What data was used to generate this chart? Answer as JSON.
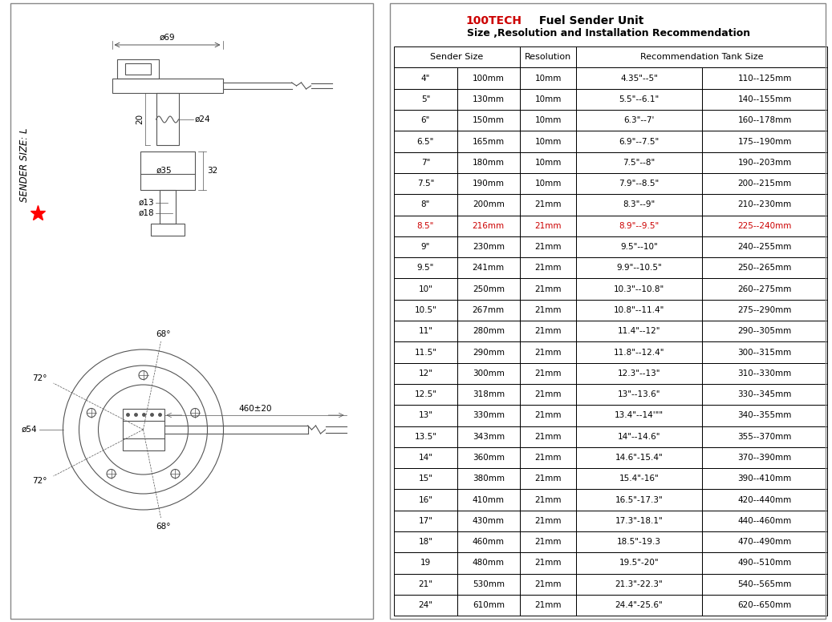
{
  "title_red": "100TECH",
  "title_black": " Fuel Sender Unit",
  "subtitle": "Size ,Resolution and Installation Recommendation",
  "title_color": "#cc0000",
  "black_color": "#000000",
  "bg_color": "#ffffff",
  "rows": [
    [
      "4\"",
      "100mm",
      "10mm",
      "4.35\"--5\"",
      "110--125mm"
    ],
    [
      "5\"",
      "130mm",
      "10mm",
      "5.5\"--6.1\"",
      "140--155mm"
    ],
    [
      "6\"",
      "150mm",
      "10mm",
      "6.3\"--7'",
      "160--178mm"
    ],
    [
      "6.5\"",
      "165mm",
      "10mm",
      "6.9\"--7.5\"",
      "175--190mm"
    ],
    [
      "7\"",
      "180mm",
      "10mm",
      "7.5\"--8\"",
      "190--203mm"
    ],
    [
      "7.5\"",
      "190mm",
      "10mm",
      "7.9\"--8.5\"",
      "200--215mm"
    ],
    [
      "8\"",
      "200mm",
      "21mm",
      "8.3\"--9\"",
      "210--230mm"
    ],
    [
      "8.5\"",
      "216mm",
      "21mm",
      "8.9\"--9.5\"",
      "225--240mm"
    ],
    [
      "9\"",
      "230mm",
      "21mm",
      "9.5\"--10\"",
      "240--255mm"
    ],
    [
      "9.5\"",
      "241mm",
      "21mm",
      "9.9\"--10.5\"",
      "250--265mm"
    ],
    [
      "10\"",
      "250mm",
      "21mm",
      "10.3\"--10.8\"",
      "260--275mm"
    ],
    [
      "10.5\"",
      "267mm",
      "21mm",
      "10.8\"--11.4\"",
      "275--290mm"
    ],
    [
      "11\"",
      "280mm",
      "21mm",
      "11.4\"--12\"",
      "290--305mm"
    ],
    [
      "11.5\"",
      "290mm",
      "21mm",
      "11.8\"--12.4\"",
      "300--315mm"
    ],
    [
      "12\"",
      "300mm",
      "21mm",
      "12.3\"--13\"",
      "310--330mm"
    ],
    [
      "12.5\"",
      "318mm",
      "21mm",
      "13\"--13.6\"",
      "330--345mm"
    ],
    [
      "13\"",
      "330mm",
      "21mm",
      "13.4\"--14'\"\"",
      "340--355mm"
    ],
    [
      "13.5\"",
      "343mm",
      "21mm",
      "14\"--14.6\"",
      "355--370mm"
    ],
    [
      "14\"",
      "360mm",
      "21mm",
      "14.6\"-15.4\"",
      "370--390mm"
    ],
    [
      "15\"",
      "380mm",
      "21mm",
      "15.4\"-16\"",
      "390--410mm"
    ],
    [
      "16\"",
      "410mm",
      "21mm",
      "16.5\"-17.3\"",
      "420--440mm"
    ],
    [
      "17\"",
      "430mm",
      "21mm",
      "17.3\"-18.1\"",
      "440--460mm"
    ],
    [
      "18\"",
      "460mm",
      "21mm",
      "18.5\"-19.3",
      "470--490mm"
    ],
    [
      "19",
      "480mm",
      "21mm",
      "19.5\"-20\"",
      "490--510mm"
    ],
    [
      "21\"",
      "530mm",
      "21mm",
      "21.3\"-22.3\"",
      "540--565mm"
    ],
    [
      "24\"",
      "610mm",
      "21mm",
      "24.4\"-25.6\"",
      "620--650mm"
    ]
  ],
  "highlight_row": 7,
  "highlight_color": "#cc0000",
  "lc": "#555555",
  "lw": 0.8,
  "fs": 7.5
}
